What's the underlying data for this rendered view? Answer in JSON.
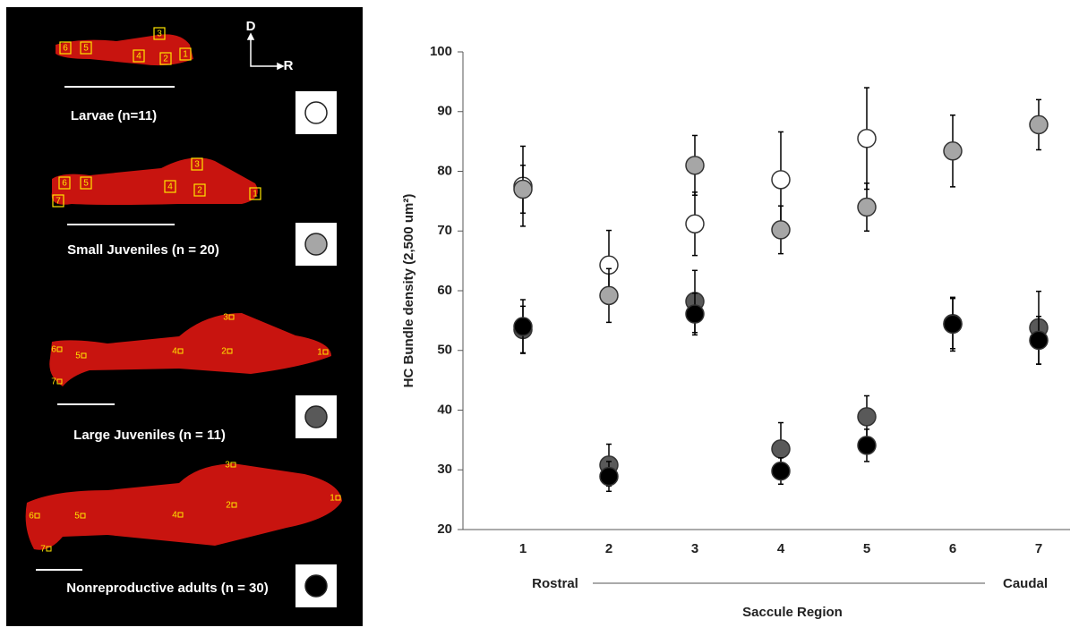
{
  "chart_data": {
    "type": "scatter",
    "ylabel": "HC Bundle density (2,500 um²)",
    "xlabel": "Saccule Region",
    "annotations": {
      "left": "Rostral",
      "right": "Caudal"
    },
    "categories": [
      "1",
      "2",
      "3",
      "4",
      "5",
      "6",
      "7"
    ],
    "ylim": [
      20,
      100
    ],
    "yticks": [
      20,
      30,
      40,
      50,
      60,
      70,
      80,
      90,
      100
    ],
    "series": [
      {
        "name": "Larvae (n=11)",
        "color": "#ffffff",
        "values": [
          77.5,
          64.3,
          71.2,
          78.6,
          85.5,
          null,
          null
        ],
        "errors": [
          6.7,
          5.8,
          5.3,
          8,
          8.5,
          null,
          null
        ]
      },
      {
        "name": "Small Juveniles (n = 20)",
        "color": "#a6a6a6",
        "values": [
          77,
          59.2,
          81,
          70.2,
          74,
          83.4,
          87.8
        ],
        "errors": [
          4,
          4.5,
          5,
          4,
          4,
          6,
          4.2
        ]
      },
      {
        "name": "Large Juveniles (n = 11)",
        "color": "#595959",
        "values": [
          53.5,
          30.8,
          58.2,
          33.5,
          38.9,
          54.5,
          53.8
        ],
        "errors": [
          3.9,
          3.5,
          5.2,
          4.4,
          3.5,
          4.2,
          6.1
        ]
      },
      {
        "name": "Nonreproductive adults (n = 30)",
        "color": "#000000",
        "values": [
          54,
          28.9,
          56.1,
          29.8,
          34.1,
          54.4,
          51.7
        ],
        "errors": [
          4.5,
          2.5,
          3.5,
          2.2,
          2.7,
          4.5,
          4
        ]
      }
    ]
  },
  "image_panel": {
    "orientation": {
      "dorsal": "D",
      "rostral": "R"
    },
    "region_labels": [
      "1",
      "2",
      "3",
      "4",
      "5",
      "6",
      "7"
    ]
  }
}
